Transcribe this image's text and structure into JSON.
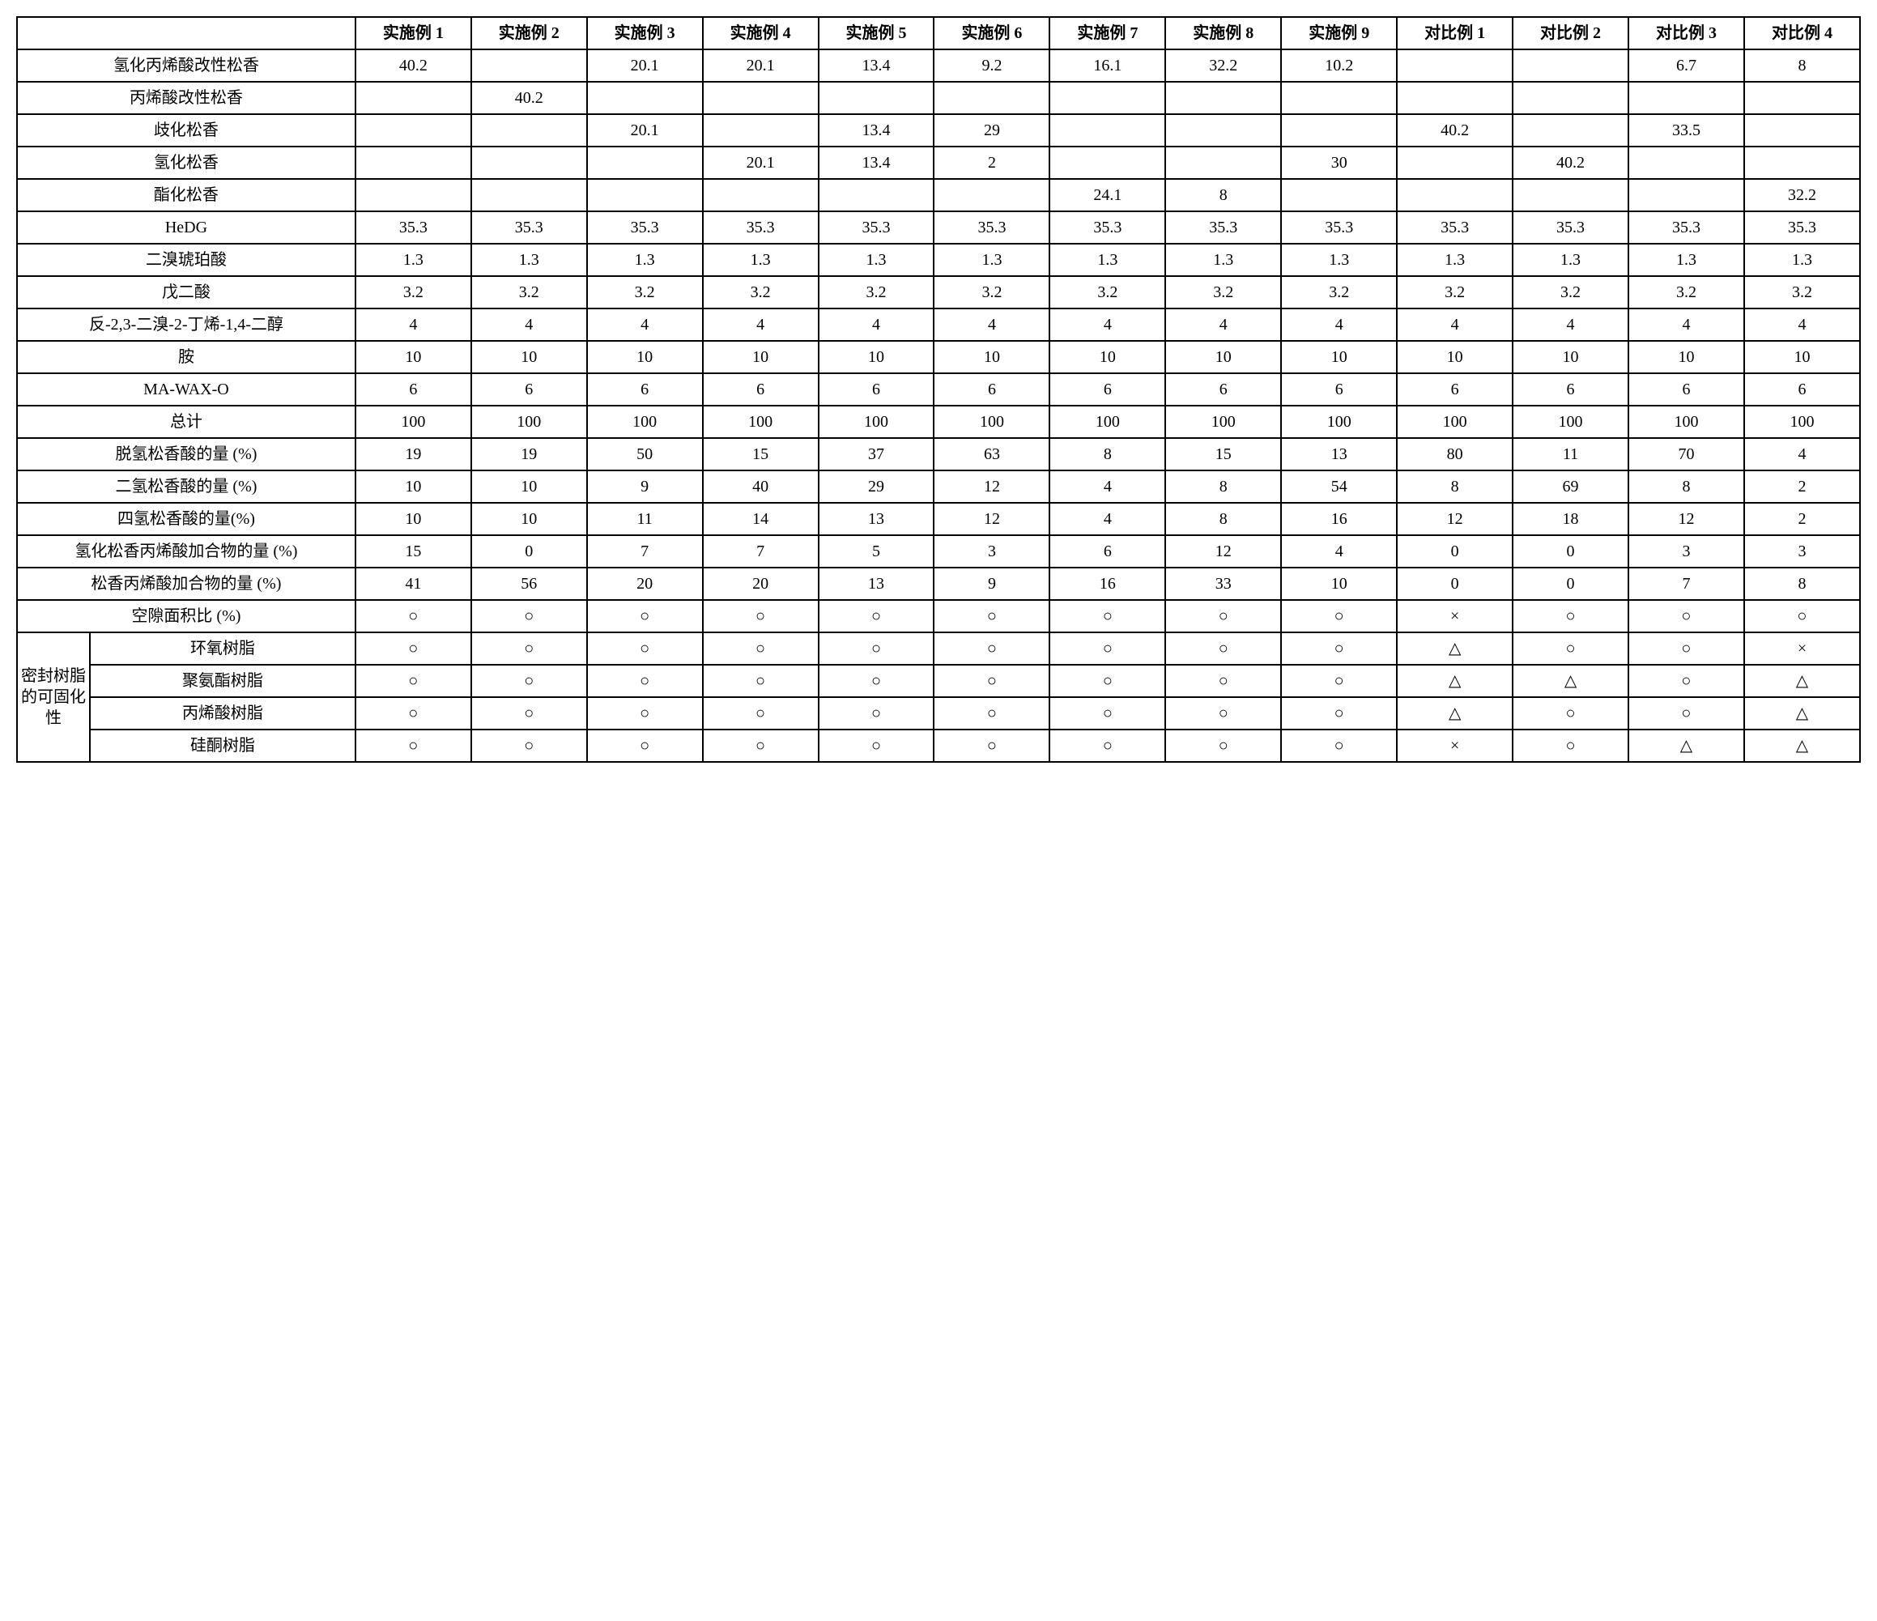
{
  "columns": [
    "实施例 1",
    "实施例 2",
    "实施例 3",
    "实施例 4",
    "实施例 5",
    "实施例 6",
    "实施例 7",
    "实施例 8",
    "实施例 9",
    "对比例 1",
    "对比例 2",
    "对比例 3",
    "对比例 4"
  ],
  "rows": [
    {
      "label": "氢化丙烯酸改性松香",
      "v": [
        "40.2",
        "",
        "20.1",
        "20.1",
        "13.4",
        "9.2",
        "16.1",
        "32.2",
        "10.2",
        "",
        "",
        "6.7",
        "8"
      ]
    },
    {
      "label": "丙烯酸改性松香",
      "v": [
        "",
        "40.2",
        "",
        "",
        "",
        "",
        "",
        "",
        "",
        "",
        "",
        "",
        ""
      ]
    },
    {
      "label": "歧化松香",
      "v": [
        "",
        "",
        "20.1",
        "",
        "13.4",
        "29",
        "",
        "",
        "",
        "40.2",
        "",
        "33.5",
        ""
      ]
    },
    {
      "label": "氢化松香",
      "v": [
        "",
        "",
        "",
        "20.1",
        "13.4",
        "2",
        "",
        "",
        "30",
        "",
        "40.2",
        "",
        ""
      ]
    },
    {
      "label": "酯化松香",
      "v": [
        "",
        "",
        "",
        "",
        "",
        "",
        "24.1",
        "8",
        "",
        "",
        "",
        "",
        "32.2"
      ]
    },
    {
      "label": "HeDG",
      "v": [
        "35.3",
        "35.3",
        "35.3",
        "35.3",
        "35.3",
        "35.3",
        "35.3",
        "35.3",
        "35.3",
        "35.3",
        "35.3",
        "35.3",
        "35.3"
      ]
    },
    {
      "label": "二溴琥珀酸",
      "v": [
        "1.3",
        "1.3",
        "1.3",
        "1.3",
        "1.3",
        "1.3",
        "1.3",
        "1.3",
        "1.3",
        "1.3",
        "1.3",
        "1.3",
        "1.3"
      ]
    },
    {
      "label": "戊二酸",
      "v": [
        "3.2",
        "3.2",
        "3.2",
        "3.2",
        "3.2",
        "3.2",
        "3.2",
        "3.2",
        "3.2",
        "3.2",
        "3.2",
        "3.2",
        "3.2"
      ]
    },
    {
      "label": "反-2,3-二溴-2-丁烯-1,4-二醇",
      "v": [
        "4",
        "4",
        "4",
        "4",
        "4",
        "4",
        "4",
        "4",
        "4",
        "4",
        "4",
        "4",
        "4"
      ]
    },
    {
      "label": "胺",
      "v": [
        "10",
        "10",
        "10",
        "10",
        "10",
        "10",
        "10",
        "10",
        "10",
        "10",
        "10",
        "10",
        "10"
      ]
    },
    {
      "label": "MA-WAX-O",
      "v": [
        "6",
        "6",
        "6",
        "6",
        "6",
        "6",
        "6",
        "6",
        "6",
        "6",
        "6",
        "6",
        "6"
      ]
    },
    {
      "label": "总计",
      "v": [
        "100",
        "100",
        "100",
        "100",
        "100",
        "100",
        "100",
        "100",
        "100",
        "100",
        "100",
        "100",
        "100"
      ]
    },
    {
      "label": "脱氢松香酸的量 (%)",
      "v": [
        "19",
        "19",
        "50",
        "15",
        "37",
        "63",
        "8",
        "15",
        "13",
        "80",
        "11",
        "70",
        "4"
      ]
    },
    {
      "label": "二氢松香酸的量 (%)",
      "v": [
        "10",
        "10",
        "9",
        "40",
        "29",
        "12",
        "4",
        "8",
        "54",
        "8",
        "69",
        "8",
        "2"
      ]
    },
    {
      "label": "四氢松香酸的量(%)",
      "v": [
        "10",
        "10",
        "11",
        "14",
        "13",
        "12",
        "4",
        "8",
        "16",
        "12",
        "18",
        "12",
        "2"
      ]
    },
    {
      "label": "氢化松香丙烯酸加合物的量 (%)",
      "v": [
        "15",
        "0",
        "7",
        "7",
        "5",
        "3",
        "6",
        "12",
        "4",
        "0",
        "0",
        "3",
        "3"
      ]
    },
    {
      "label": "松香丙烯酸加合物的量 (%)",
      "v": [
        "41",
        "56",
        "20",
        "20",
        "13",
        "9",
        "16",
        "33",
        "10",
        "0",
        "0",
        "7",
        "8"
      ]
    },
    {
      "label": "空隙面积比 (%)",
      "v": [
        "○",
        "○",
        "○",
        "○",
        "○",
        "○",
        "○",
        "○",
        "○",
        "×",
        "○",
        "○",
        "○"
      ]
    }
  ],
  "group": {
    "label": "密封树脂的可固化性",
    "subrows": [
      {
        "label": "环氧树脂",
        "v": [
          "○",
          "○",
          "○",
          "○",
          "○",
          "○",
          "○",
          "○",
          "○",
          "△",
          "○",
          "○",
          "×"
        ]
      },
      {
        "label": "聚氨酯树脂",
        "v": [
          "○",
          "○",
          "○",
          "○",
          "○",
          "○",
          "○",
          "○",
          "○",
          "△",
          "△",
          "○",
          "△"
        ]
      },
      {
        "label": "丙烯酸树脂",
        "v": [
          "○",
          "○",
          "○",
          "○",
          "○",
          "○",
          "○",
          "○",
          "○",
          "△",
          "○",
          "○",
          "△"
        ]
      },
      {
        "label": "硅酮树脂",
        "v": [
          "○",
          "○",
          "○",
          "○",
          "○",
          "○",
          "○",
          "○",
          "○",
          "×",
          "○",
          "△",
          "△"
        ]
      }
    ]
  }
}
